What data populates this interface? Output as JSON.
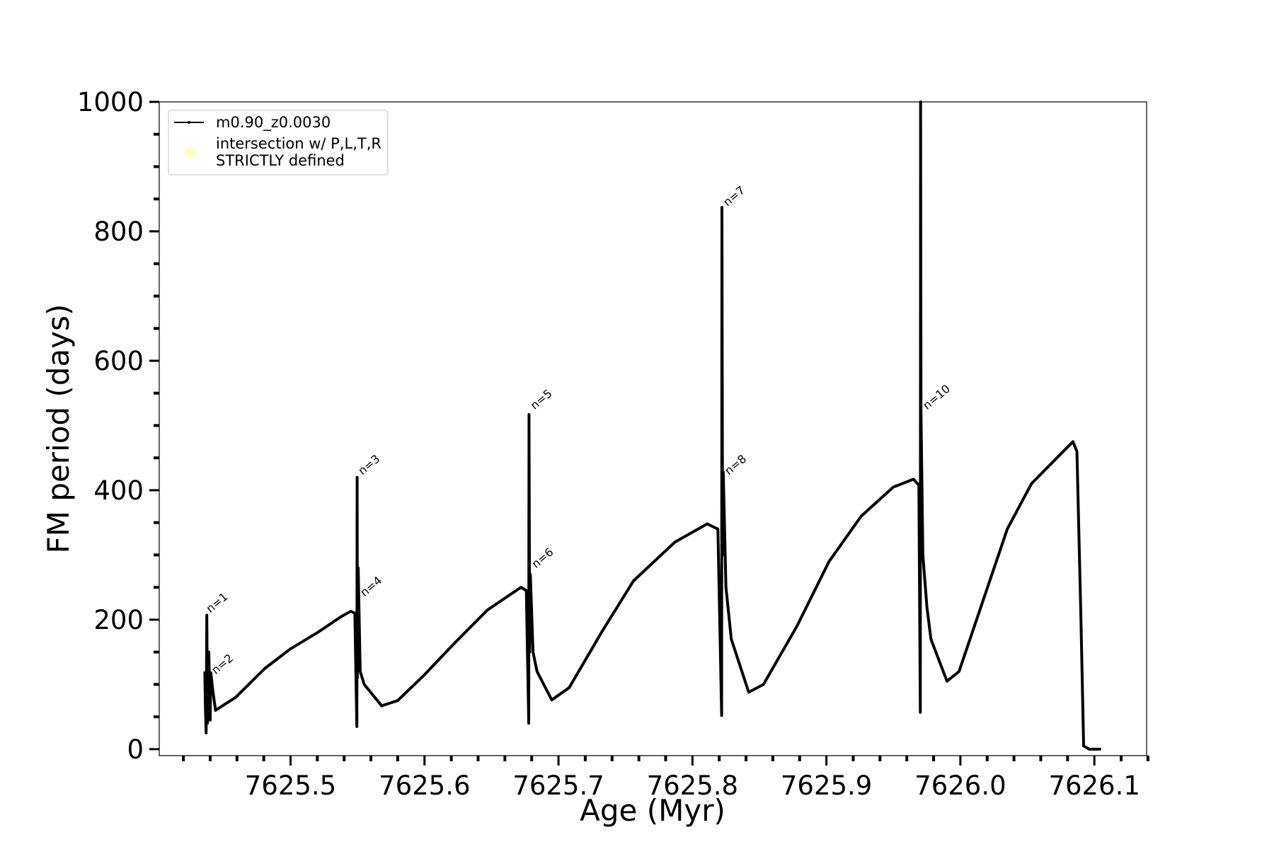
{
  "chart_data": {
    "type": "line",
    "xlabel": "Age (Myr)",
    "ylabel": "FM period (days)",
    "xlim": [
      7625.402,
      7626.139
    ],
    "ylim": [
      -10,
      1000
    ],
    "xticks": [
      7625.5,
      7625.6,
      7625.7,
      7625.8,
      7625.9,
      {
        "value": 7626,
        "label": "7626.0"
      },
      7626.1
    ],
    "xminorticks": [
      7625.42,
      7625.44,
      7625.46,
      7625.48,
      7625.52,
      7625.54,
      7625.56,
      7625.58,
      7625.62,
      7625.64,
      7625.66,
      7625.68,
      7625.72,
      7625.74,
      7625.76,
      7625.78,
      7625.82,
      7625.84,
      7625.86,
      7625.88,
      7625.92,
      7625.94,
      7625.96,
      7625.98,
      7626.02,
      7626.04,
      7626.06,
      7626.08,
      7626.12,
      7626.14
    ],
    "yticks": [
      0,
      200,
      400,
      600,
      800,
      1000
    ],
    "yminorticks": [
      50,
      100,
      150,
      250,
      300,
      350,
      450,
      500,
      550,
      650,
      700,
      750,
      850,
      900,
      950
    ],
    "legend": "upper left",
    "series": [
      {
        "name": "m0.90_z0.0030",
        "color": "#000000",
        "x": [
          7625.436,
          7625.4365,
          7625.437,
          7625.4375,
          7625.438,
          7625.439,
          7625.44,
          7625.4405,
          7625.442,
          7625.444,
          7625.459,
          7625.481,
          7625.5,
          7625.52,
          7625.538,
          7625.545,
          7625.548,
          7625.5495,
          7625.5497,
          7625.5499,
          7625.5505,
          7625.552,
          7625.555,
          7625.568,
          7625.58,
          7625.6,
          7625.623,
          7625.647,
          7625.672,
          7625.676,
          7625.6778,
          7625.678,
          7625.6785,
          7625.679,
          7625.681,
          7625.684,
          7625.695,
          7625.708,
          7625.732,
          7625.756,
          7625.787,
          7625.811,
          7625.819,
          7625.8218,
          7625.822,
          7625.8225,
          7625.823,
          7625.825,
          7625.829,
          7625.842,
          7625.853,
          7625.878,
          7625.902,
          7625.926,
          7625.95,
          7625.965,
          7625.969,
          7625.9701,
          7625.9703,
          7625.9706,
          7625.972,
          7625.975,
          7625.978,
          7625.99,
          7625.999,
          7626.017,
          7626.035,
          7626.053,
          7626.072,
          7626.084,
          7626.087,
          7626.09,
          7626.092,
          7626.096,
          7626.105
        ],
        "values": [
          120,
          60,
          25,
          207,
          40,
          150,
          45,
          118,
          90,
          60,
          80,
          125,
          155,
          180,
          205,
          213,
          210,
          35,
          420,
          110,
          280,
          120,
          100,
          67,
          75,
          115,
          165,
          215,
          250,
          245,
          40,
          517,
          150,
          270,
          150,
          120,
          76,
          95,
          180,
          260,
          320,
          348,
          340,
          52,
          837,
          300,
          428,
          250,
          170,
          88,
          100,
          190,
          290,
          360,
          405,
          417,
          408,
          57,
          1000,
          520,
          300,
          220,
          170,
          105,
          120,
          230,
          340,
          410,
          450,
          475,
          460,
          200,
          5,
          0,
          0
        ]
      },
      {
        "name": "intersection w/ P,L,T,R\nSTRICTLY defined",
        "type": "scatter",
        "color": "#ffffb3",
        "x": [],
        "values": []
      }
    ],
    "annotations": [
      {
        "text": "n=1",
        "x": 7625.438,
        "y": 210
      },
      {
        "text": "n=2",
        "x": 7625.442,
        "y": 115
      },
      {
        "text": "n=3",
        "x": 7625.5515,
        "y": 423
      },
      {
        "text": "n=4",
        "x": 7625.553,
        "y": 235
      },
      {
        "text": "n=5",
        "x": 7625.68,
        "y": 524
      },
      {
        "text": "n=6",
        "x": 7625.681,
        "y": 279
      },
      {
        "text": "n=7",
        "x": 7625.824,
        "y": 838
      },
      {
        "text": "n=8",
        "x": 7625.825,
        "y": 423
      },
      {
        "text": "n=10",
        "x": 7625.973,
        "y": 524
      }
    ]
  }
}
